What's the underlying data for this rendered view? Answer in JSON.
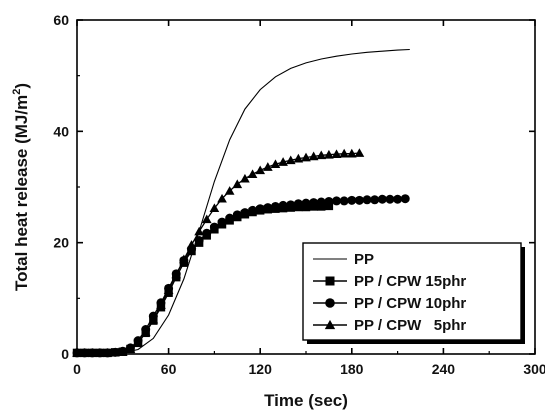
{
  "chart_data": {
    "type": "line",
    "xlabel": "Time (sec)",
    "ylabel": "Total heat release (MJ/m²)",
    "ylabel_main": "Total heat release (MJ/m",
    "ylabel_sup": "2",
    "ylabel_end": ")",
    "xlim": [
      0,
      300
    ],
    "ylim": [
      0,
      60
    ],
    "xticks": [
      0,
      60,
      120,
      180,
      240,
      300
    ],
    "xtick_labels": [
      "0",
      "60",
      "120",
      "180",
      "240",
      "300"
    ],
    "yticks": [
      0,
      20,
      40,
      60
    ],
    "ytick_labels": [
      "0",
      "20",
      "40",
      "60"
    ],
    "grid": false,
    "legend_position": "bottom-right",
    "series": [
      {
        "name": "PP",
        "marker": "none",
        "x": [
          0,
          30,
          40,
          50,
          60,
          70,
          80,
          90,
          100,
          110,
          120,
          130,
          140,
          150,
          160,
          170,
          180,
          190,
          200,
          210,
          218
        ],
        "y": [
          0,
          0.2,
          0.8,
          2.8,
          7,
          13.5,
          22,
          31,
          38.5,
          44,
          47.5,
          49.8,
          51.3,
          52.3,
          53,
          53.5,
          53.9,
          54.2,
          54.4,
          54.6,
          54.7
        ]
      },
      {
        "name": "PP / CPW 15phr",
        "marker": "square",
        "x": [
          0,
          5,
          10,
          15,
          20,
          25,
          30,
          35,
          40,
          45,
          50,
          55,
          60,
          65,
          70,
          75,
          80,
          85,
          90,
          95,
          100,
          105,
          110,
          115,
          120,
          125,
          130,
          135,
          140,
          145,
          150,
          155,
          160,
          165
        ],
        "y": [
          0.2,
          0.2,
          0.2,
          0.2,
          0.2,
          0.3,
          0.4,
          0.9,
          2,
          3.8,
          6,
          8.4,
          11,
          13.8,
          16.4,
          18.5,
          20,
          21.3,
          22.4,
          23.3,
          24,
          24.6,
          25.1,
          25.5,
          25.8,
          26,
          26.1,
          26.2,
          26.3,
          26.4,
          26.4,
          26.5,
          26.5,
          26.6
        ]
      },
      {
        "name": "PP / CPW 10phr",
        "marker": "circle",
        "x": [
          0,
          5,
          10,
          15,
          20,
          25,
          30,
          35,
          40,
          45,
          50,
          55,
          60,
          65,
          70,
          75,
          80,
          85,
          90,
          95,
          100,
          105,
          110,
          115,
          120,
          125,
          130,
          135,
          140,
          145,
          150,
          155,
          160,
          165,
          170,
          175,
          180,
          185,
          190,
          195,
          200,
          205,
          210,
          215
        ],
        "y": [
          0.2,
          0.2,
          0.2,
          0.2,
          0.2,
          0.3,
          0.5,
          1.1,
          2.4,
          4.4,
          6.8,
          9.2,
          11.8,
          14.4,
          16.8,
          18.8,
          20.4,
          21.7,
          22.8,
          23.7,
          24.4,
          25,
          25.4,
          25.8,
          26.1,
          26.3,
          26.5,
          26.7,
          26.8,
          27,
          27.1,
          27.2,
          27.3,
          27.4,
          27.5,
          27.5,
          27.6,
          27.6,
          27.7,
          27.7,
          27.8,
          27.8,
          27.8,
          27.9
        ]
      },
      {
        "name": "PP / CPW   5phr",
        "marker": "triangle",
        "x": [
          0,
          5,
          10,
          15,
          20,
          25,
          30,
          35,
          40,
          45,
          50,
          55,
          60,
          65,
          70,
          75,
          80,
          85,
          90,
          95,
          100,
          105,
          110,
          115,
          120,
          125,
          130,
          135,
          140,
          145,
          150,
          155,
          160,
          165,
          170,
          175,
          180,
          185
        ],
        "y": [
          0.2,
          0.2,
          0.2,
          0.2,
          0.2,
          0.3,
          0.4,
          0.9,
          2.1,
          3.9,
          6.2,
          8.8,
          11.5,
          14.3,
          17,
          19.6,
          22,
          24.2,
          26.2,
          27.9,
          29.3,
          30.5,
          31.5,
          32.3,
          33,
          33.6,
          34.1,
          34.5,
          34.8,
          35.1,
          35.3,
          35.5,
          35.7,
          35.8,
          35.9,
          36,
          36,
          36.1
        ]
      }
    ]
  }
}
